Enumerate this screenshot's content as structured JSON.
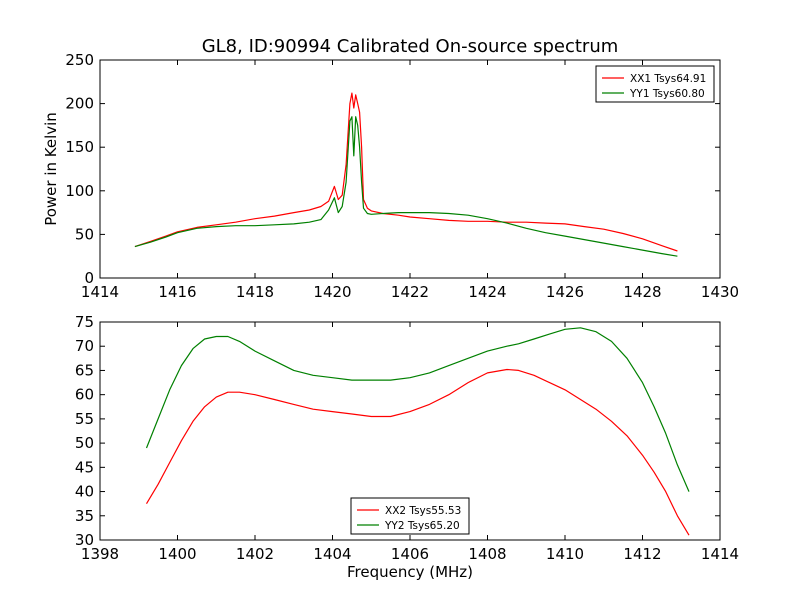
{
  "figure": {
    "title": "GL8, ID:90994 Calibrated On-source spectrum",
    "xlabel": "Frequency (MHz)",
    "ylabel": "Power in Kelvin"
  },
  "chart_data": [
    {
      "type": "line",
      "title": "GL8, ID:90994 Calibrated On-source spectrum",
      "xlabel": "",
      "ylabel": "Power in Kelvin",
      "xlim": [
        1414,
        1430
      ],
      "ylim": [
        0,
        250
      ],
      "xticks": [
        1414,
        1416,
        1418,
        1420,
        1422,
        1424,
        1426,
        1428,
        1430
      ],
      "yticks": [
        0,
        50,
        100,
        150,
        200,
        250
      ],
      "legend_position": "top-right",
      "grid": false,
      "series": [
        {
          "name": "XX1 Tsys64.91",
          "color": "#ff0000",
          "x": [
            1414.9,
            1415.3,
            1415.7,
            1416.0,
            1416.5,
            1417.0,
            1417.5,
            1418.0,
            1418.5,
            1419.0,
            1419.4,
            1419.7,
            1419.9,
            1420.05,
            1420.15,
            1420.25,
            1420.35,
            1420.45,
            1420.5,
            1420.55,
            1420.6,
            1420.65,
            1420.7,
            1420.75,
            1420.8,
            1420.9,
            1421.0,
            1421.3,
            1421.7,
            1422.0,
            1422.5,
            1423.0,
            1423.5,
            1424.0,
            1424.5,
            1425.0,
            1425.5,
            1426.0,
            1426.5,
            1427.0,
            1427.5,
            1428.0,
            1428.5,
            1428.9
          ],
          "y": [
            36,
            42,
            48,
            53,
            58,
            61,
            64,
            68,
            71,
            75,
            78,
            82,
            88,
            105,
            90,
            95,
            130,
            200,
            212,
            195,
            210,
            200,
            190,
            150,
            90,
            80,
            77,
            74,
            72,
            70,
            68,
            66,
            65,
            65,
            64,
            64,
            63,
            62,
            59,
            56,
            51,
            45,
            37,
            31
          ]
        },
        {
          "name": "YY1 Tsys60.80",
          "color": "#008000",
          "x": [
            1414.9,
            1415.3,
            1415.7,
            1416.0,
            1416.5,
            1417.0,
            1417.5,
            1418.0,
            1418.5,
            1419.0,
            1419.4,
            1419.7,
            1419.9,
            1420.05,
            1420.15,
            1420.25,
            1420.35,
            1420.45,
            1420.5,
            1420.55,
            1420.6,
            1420.65,
            1420.7,
            1420.75,
            1420.8,
            1420.9,
            1421.0,
            1421.3,
            1421.7,
            1422.0,
            1422.5,
            1423.0,
            1423.5,
            1424.0,
            1424.5,
            1425.0,
            1425.5,
            1426.0,
            1426.5,
            1427.0,
            1427.5,
            1428.0,
            1428.5,
            1428.9
          ],
          "y": [
            36,
            41,
            47,
            52,
            57,
            59,
            60,
            60,
            61,
            62,
            64,
            67,
            78,
            92,
            75,
            82,
            110,
            180,
            185,
            140,
            185,
            175,
            150,
            110,
            80,
            74,
            73,
            74,
            75,
            75,
            75,
            74,
            72,
            68,
            63,
            57,
            52,
            48,
            44,
            40,
            36,
            32,
            28,
            25
          ]
        }
      ]
    },
    {
      "type": "line",
      "title": "",
      "xlabel": "Frequency (MHz)",
      "ylabel": "",
      "xlim": [
        1398,
        1414
      ],
      "ylim": [
        30,
        75
      ],
      "xticks": [
        1398,
        1400,
        1402,
        1404,
        1406,
        1408,
        1410,
        1412,
        1414
      ],
      "yticks": [
        30,
        35,
        40,
        45,
        50,
        55,
        60,
        65,
        70,
        75
      ],
      "legend_position": "bottom-center",
      "grid": false,
      "series": [
        {
          "name": "XX2 Tsys55.53",
          "color": "#ff0000",
          "x": [
            1399.2,
            1399.5,
            1399.8,
            1400.1,
            1400.4,
            1400.7,
            1401.0,
            1401.3,
            1401.6,
            1402.0,
            1402.5,
            1403.0,
            1403.5,
            1404.0,
            1404.5,
            1405.0,
            1405.5,
            1406.0,
            1406.5,
            1407.0,
            1407.5,
            1408.0,
            1408.5,
            1408.8,
            1409.2,
            1409.6,
            1410.0,
            1410.4,
            1410.8,
            1411.2,
            1411.6,
            1412.0,
            1412.3,
            1412.6,
            1412.9,
            1413.2
          ],
          "y": [
            37.5,
            41.5,
            46,
            50.5,
            54.5,
            57.5,
            59.5,
            60.5,
            60.5,
            60,
            59,
            58,
            57,
            56.5,
            56,
            55.5,
            55.5,
            56.5,
            58,
            60,
            62.5,
            64.5,
            65.2,
            65,
            64,
            62.5,
            61,
            59,
            57,
            54.5,
            51.5,
            47.5,
            44,
            40,
            35,
            31
          ]
        },
        {
          "name": "YY2 Tsys65.20",
          "color": "#008000",
          "x": [
            1399.2,
            1399.5,
            1399.8,
            1400.1,
            1400.4,
            1400.7,
            1401.0,
            1401.3,
            1401.6,
            1402.0,
            1402.5,
            1403.0,
            1403.5,
            1404.0,
            1404.5,
            1405.0,
            1405.5,
            1406.0,
            1406.5,
            1407.0,
            1407.5,
            1408.0,
            1408.5,
            1408.8,
            1409.2,
            1409.6,
            1410.0,
            1410.4,
            1410.8,
            1411.2,
            1411.6,
            1412.0,
            1412.3,
            1412.6,
            1412.9,
            1413.2
          ],
          "y": [
            49,
            55,
            61,
            66,
            69.5,
            71.5,
            72,
            72,
            71,
            69,
            67,
            65,
            64,
            63.5,
            63,
            63,
            63,
            63.5,
            64.5,
            66,
            67.5,
            69,
            70,
            70.5,
            71.5,
            72.5,
            73.5,
            73.8,
            73,
            71,
            67.5,
            62.5,
            57.5,
            52,
            45.5,
            40
          ]
        }
      ]
    }
  ]
}
